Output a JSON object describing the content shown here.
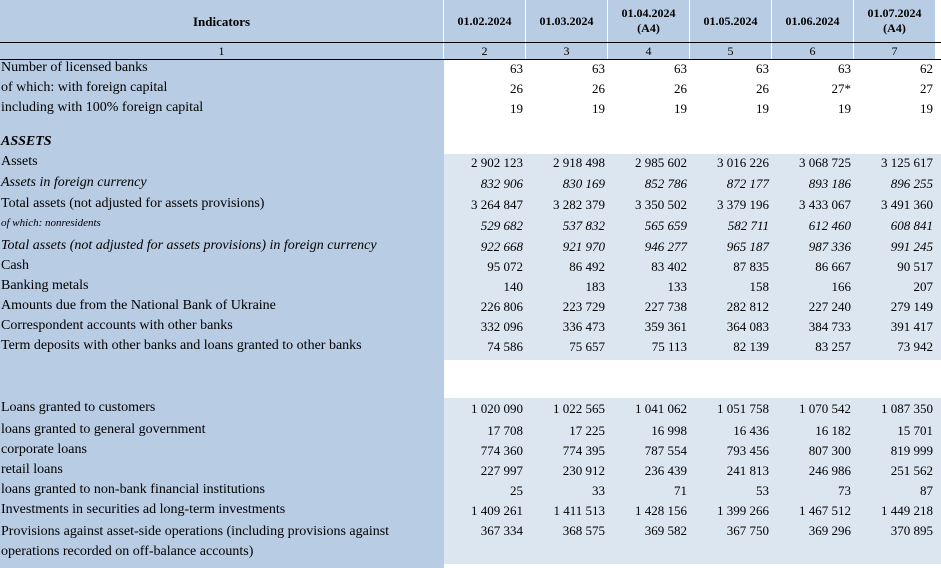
{
  "header": {
    "indicators": "Indicators",
    "dates": [
      [
        "01.02.2024"
      ],
      [
        "01.03.2024"
      ],
      [
        "01.04.2024",
        "(A4)"
      ],
      [
        "01.05.2024"
      ],
      [
        "01.06.2024"
      ],
      [
        "01.07.2024",
        "(A4)"
      ]
    ],
    "col_numbers": [
      "1",
      "2",
      "3",
      "4",
      "5",
      "6",
      "7"
    ]
  },
  "rows": [
    {
      "label": "Number of licensed banks",
      "values": [
        "63",
        "63",
        "63",
        "63",
        "63",
        "62"
      ]
    },
    {
      "label": "of which: with foreign capital",
      "values": [
        "26",
        "26",
        "26",
        "26",
        "27*",
        "27"
      ]
    },
    {
      "label": "including with 100% foreign capital",
      "values": [
        "19",
        "19",
        "19",
        "19",
        "19",
        "19"
      ]
    },
    {
      "label": "ASSETS",
      "values": []
    },
    {
      "label": "Assets",
      "values": [
        "2 902 123",
        "2 918 498",
        "2 985 602",
        "3 016 226",
        "3 068 725",
        "3 125 617"
      ]
    },
    {
      "label": "Assets in foreign currency",
      "values": [
        "832 906",
        "830 169",
        "852 786",
        "872 177",
        "893 186",
        "896 255"
      ]
    },
    {
      "label": "Total assets (not adjusted for assets provisions)",
      "values": [
        "3 264 847",
        "3 282 379",
        "3 350 502",
        "3 379 196",
        "3 433 067",
        "3 491 360"
      ]
    },
    {
      "label": "of which: nonresidents",
      "values": [
        "529 682",
        "537 832",
        "565 659",
        "582 711",
        "612 460",
        "608 841"
      ]
    },
    {
      "label": "Total assets (not adjusted for assets provisions) in foreign currency",
      "values": [
        "922 668",
        "921 970",
        "946 277",
        "965 187",
        "987 336",
        "991 245"
      ]
    },
    {
      "label": "Cash",
      "values": [
        "95 072",
        "86 492",
        "83 402",
        "87 835",
        "86 667",
        "90 517"
      ]
    },
    {
      "label": "Banking metals",
      "values": [
        "140",
        "183",
        "133",
        "158",
        "166",
        "207"
      ]
    },
    {
      "label": "Amounts due from the National Bank of Ukraine",
      "values": [
        "226 806",
        "223 729",
        "227 738",
        "282 812",
        "227 240",
        "279 149"
      ]
    },
    {
      "label": "Correspondent accounts with other banks",
      "values": [
        "332 096",
        "336 473",
        "359 361",
        "364 083",
        "384 733",
        "391 417"
      ]
    },
    {
      "label": "Term deposits with other banks and loans granted to other banks",
      "values": [
        "74 586",
        "75 657",
        "75 113",
        "82 139",
        "83 257",
        "73 942"
      ]
    },
    {
      "label": "Loans granted to customers",
      "values": [
        "1 020 090",
        "1 022 565",
        "1 041 062",
        "1 051 758",
        "1 070 542",
        "1 087 350"
      ]
    },
    {
      "label": "loans granted to general government",
      "values": [
        "17 708",
        "17 225",
        "16 998",
        "16 436",
        "16 182",
        "15 701"
      ]
    },
    {
      "label": "corporate loans",
      "values": [
        "774 360",
        "774 395",
        "787 554",
        "793 456",
        "807 300",
        "819 999"
      ]
    },
    {
      "label": "retail loans",
      "values": [
        "227 997",
        "230 912",
        "236 439",
        "241 813",
        "246 986",
        "251 562"
      ]
    },
    {
      "label": "loans granted to non-bank financial institutions",
      "values": [
        "25",
        "33",
        "71",
        "53",
        "73",
        "87"
      ]
    },
    {
      "label": "Investments in securities ad long-term investments",
      "values": [
        "1 409 261",
        "1 411 513",
        "1 428 156",
        "1 399 266",
        "1 467 512",
        "1 449 218"
      ]
    },
    {
      "label": "Provisions against asset-side operations (including provisions against operations recorded on off-balance accounts)",
      "values": [
        "367 334",
        "368 575",
        "369 582",
        "367 750",
        "369 296",
        "370 895"
      ]
    }
  ],
  "colors": {
    "header_bg": "#b8cce4",
    "band_bg": "#dce6f1",
    "panel_bg": "#b8cce4"
  }
}
